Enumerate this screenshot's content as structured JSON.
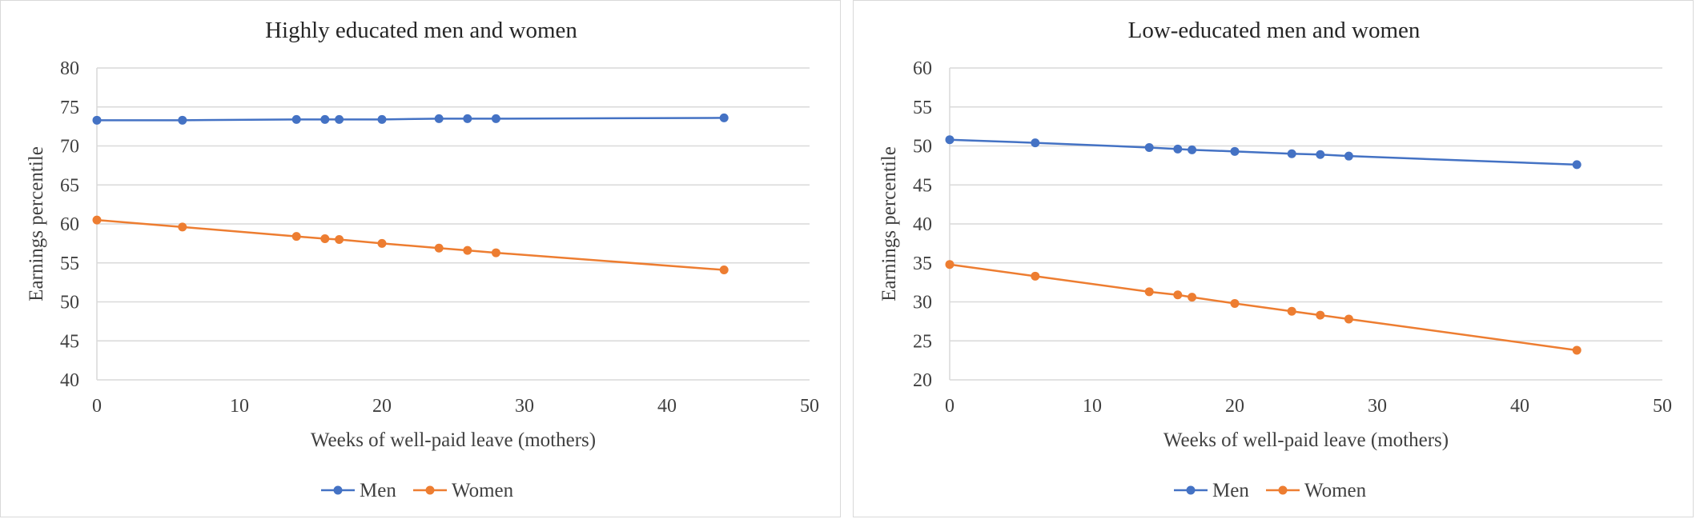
{
  "colors": {
    "men": "#4472C4",
    "women": "#ED7D31",
    "grid": "#d9d9d9"
  },
  "chart_data": [
    {
      "type": "line",
      "title": "Highly educated men and women",
      "xlabel": "Weeks of well-paid leave (mothers)",
      "ylabel": "Earnings percentile",
      "xlim": [
        0,
        50
      ],
      "ylim": [
        40,
        80
      ],
      "xticks": [
        0,
        10,
        20,
        30,
        40,
        50
      ],
      "yticks": [
        40,
        45,
        50,
        55,
        60,
        65,
        70,
        75,
        80
      ],
      "grid": true,
      "legend_position": "bottom",
      "x": [
        0,
        6,
        14,
        16,
        17,
        20,
        24,
        26,
        28,
        44
      ],
      "series": [
        {
          "name": "Men",
          "values": [
            73.3,
            73.3,
            73.4,
            73.4,
            73.4,
            73.4,
            73.5,
            73.5,
            73.5,
            73.6
          ]
        },
        {
          "name": "Women",
          "values": [
            60.5,
            59.6,
            58.4,
            58.1,
            58.0,
            57.5,
            56.9,
            56.6,
            56.3,
            54.1
          ]
        }
      ]
    },
    {
      "type": "line",
      "title": "Low-educated men and women",
      "xlabel": "Weeks of well-paid leave (mothers)",
      "ylabel": "Earnings percentile",
      "xlim": [
        0,
        50
      ],
      "ylim": [
        20,
        60
      ],
      "xticks": [
        0,
        10,
        20,
        30,
        40,
        50
      ],
      "yticks": [
        20,
        25,
        30,
        35,
        40,
        45,
        50,
        55,
        60
      ],
      "grid": true,
      "legend_position": "bottom",
      "x": [
        0,
        6,
        14,
        16,
        17,
        20,
        24,
        26,
        28,
        44
      ],
      "series": [
        {
          "name": "Men",
          "values": [
            50.8,
            50.4,
            49.8,
            49.6,
            49.5,
            49.3,
            49.0,
            48.9,
            48.7,
            47.6
          ]
        },
        {
          "name": "Women",
          "values": [
            34.8,
            33.3,
            31.3,
            30.9,
            30.6,
            29.8,
            28.8,
            28.3,
            27.8,
            23.8
          ]
        }
      ]
    }
  ]
}
